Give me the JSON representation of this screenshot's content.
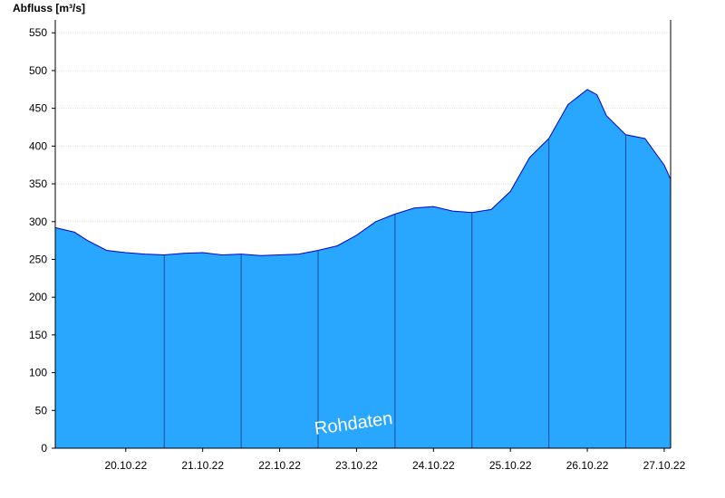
{
  "chart_data": {
    "type": "area",
    "ylabel": "Abfluss [m³/s]",
    "watermark": "Rohdaten",
    "ylim": [
      0,
      560
    ],
    "yticks": [
      0,
      50,
      100,
      150,
      200,
      250,
      300,
      350,
      400,
      450,
      500,
      550
    ],
    "x_range": [
      "19.10.22 14:00",
      "27.10.22 14:00"
    ],
    "day_labels": [
      "20.10.22",
      "21.10.22",
      "22.10.22",
      "23.10.22",
      "24.10.22",
      "25.10.22",
      "26.10.22",
      "27.10.22"
    ],
    "grid": "horizontal dotted lines, vertical lines at midnight",
    "fill_color": "#29a7ff",
    "line_color": "#0000cc",
    "series": [
      {
        "x": [
          "19.10.22 14:00",
          "19.10.22 20:00",
          "20.10.22 00:00",
          "20.10.22 06:00",
          "20.10.22 12:00",
          "20.10.22 18:00",
          "21.10.22 00:00",
          "21.10.22 06:00",
          "21.10.22 12:00",
          "21.10.22 18:00",
          "22.10.22 00:00",
          "22.10.22 06:00",
          "22.10.22 12:00",
          "22.10.22 18:00",
          "23.10.22 00:00",
          "23.10.22 06:00",
          "23.10.22 12:00",
          "23.10.22 18:00",
          "24.10.22 00:00",
          "24.10.22 06:00",
          "24.10.22 12:00",
          "24.10.22 18:00",
          "25.10.22 00:00",
          "25.10.22 06:00",
          "25.10.22 12:00",
          "25.10.22 18:00",
          "26.10.22 00:00",
          "26.10.22 06:00",
          "26.10.22 12:00",
          "26.10.22 15:00",
          "26.10.22 18:00",
          "27.10.22 00:00",
          "27.10.22 06:00",
          "27.10.22 12:00",
          "27.10.22 14:00"
        ],
        "values": [
          292,
          286,
          275,
          262,
          259,
          257,
          256,
          258,
          259,
          256,
          257,
          255,
          256,
          257,
          262,
          268,
          282,
          300,
          310,
          318,
          320,
          314,
          312,
          316,
          340,
          385,
          410,
          455,
          475,
          468,
          440,
          415,
          410,
          375,
          356
        ]
      }
    ]
  }
}
